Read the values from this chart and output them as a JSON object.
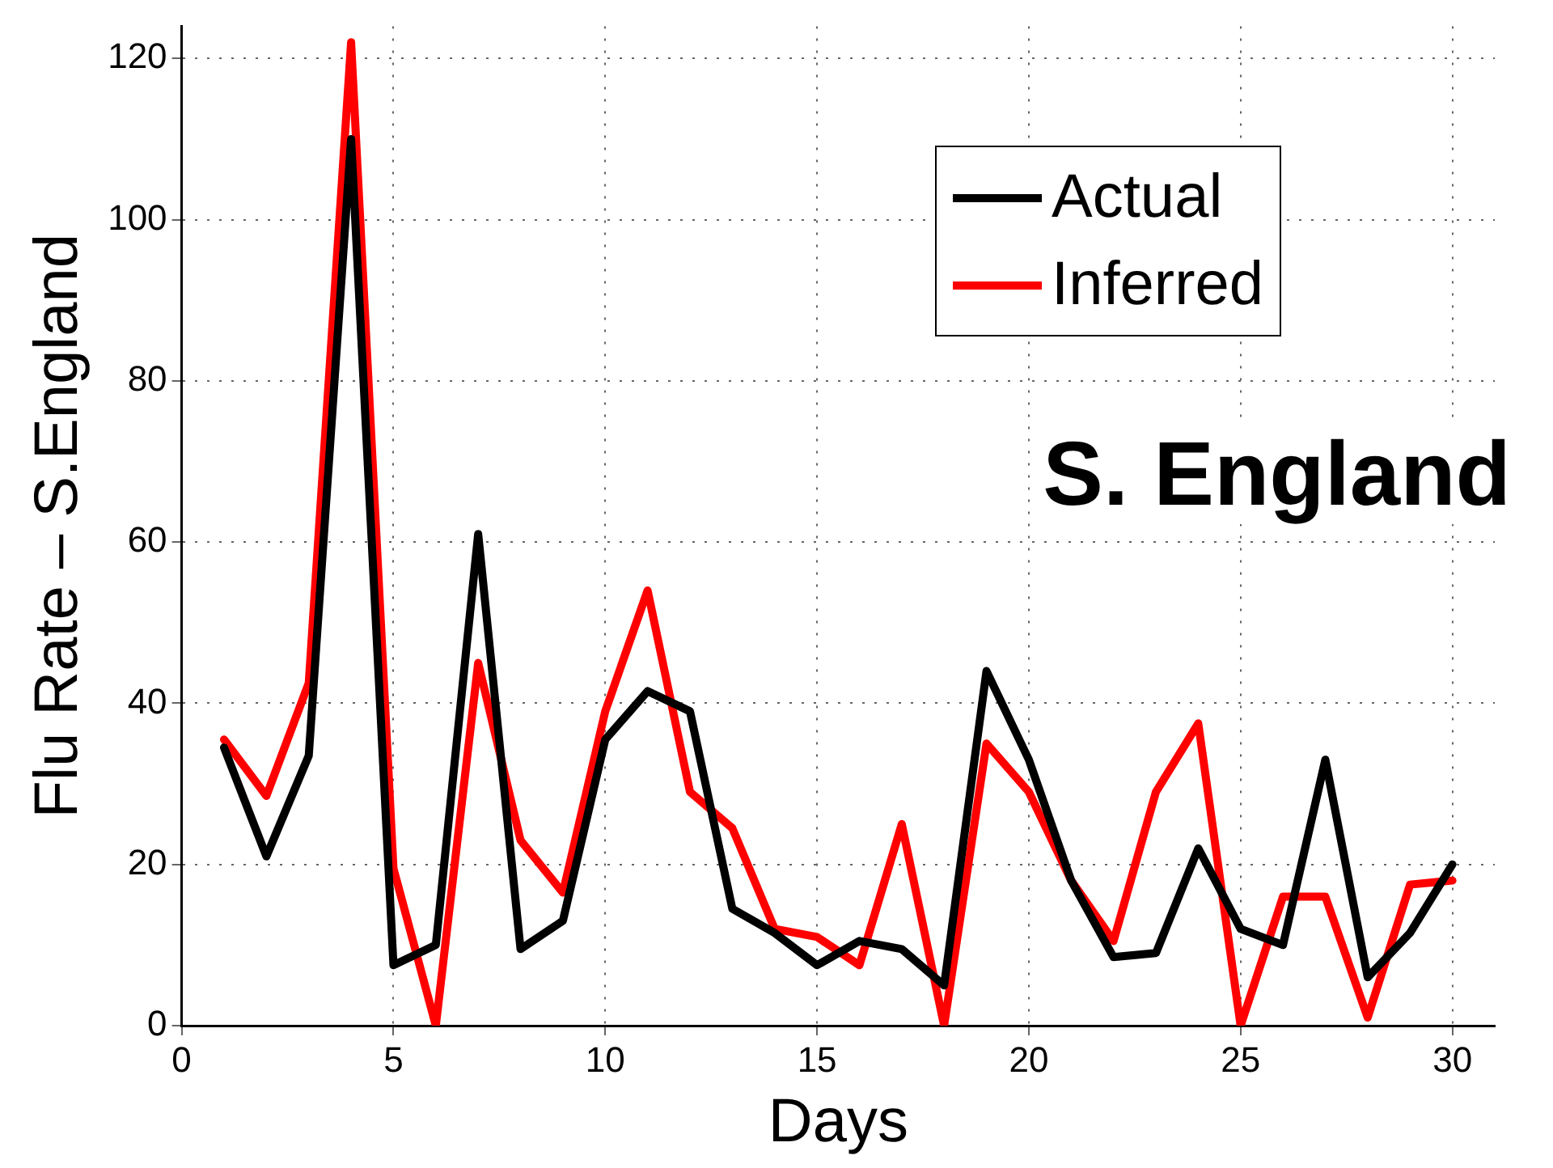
{
  "chart_data": {
    "type": "line",
    "xlabel": "Days",
    "ylabel": "Flu Rate – S.England",
    "annotations": [
      "S. England"
    ],
    "x": [
      1,
      2,
      3,
      4,
      5,
      6,
      7,
      8,
      9,
      10,
      11,
      12,
      13,
      14,
      15,
      16,
      17,
      18,
      19,
      20,
      21,
      22,
      23,
      24,
      25,
      26,
      27,
      28,
      29,
      30
    ],
    "series": [
      {
        "name": "Actual",
        "color": "#000000",
        "values": [
          34.5,
          21,
          33.5,
          110,
          7.5,
          10,
          61,
          9.5,
          13,
          35.5,
          41.5,
          39,
          14.5,
          11.5,
          7.5,
          10.5,
          9.5,
          5,
          44,
          33,
          18,
          8.5,
          9,
          22,
          12,
          10,
          33,
          6,
          11.5,
          20
        ]
      },
      {
        "name": "Inferred",
        "color": "#ff0000",
        "values": [
          35.5,
          28.5,
          42.5,
          122,
          19.5,
          0,
          45,
          23,
          16.5,
          39,
          54,
          29,
          24.5,
          12,
          11,
          7.5,
          25,
          0,
          35,
          29,
          18,
          10.5,
          29,
          37.5,
          0,
          16,
          16,
          1,
          17.5,
          18
        ]
      }
    ],
    "xlim": [
      0,
      31
    ],
    "xticks": [
      0,
      5,
      10,
      15,
      20,
      25,
      30
    ],
    "ylim": [
      0,
      124
    ],
    "yticks": [
      0,
      20,
      40,
      60,
      80,
      100,
      120
    ],
    "grid": true,
    "legend": "top right",
    "marker": "none",
    "line_style": "solid"
  }
}
